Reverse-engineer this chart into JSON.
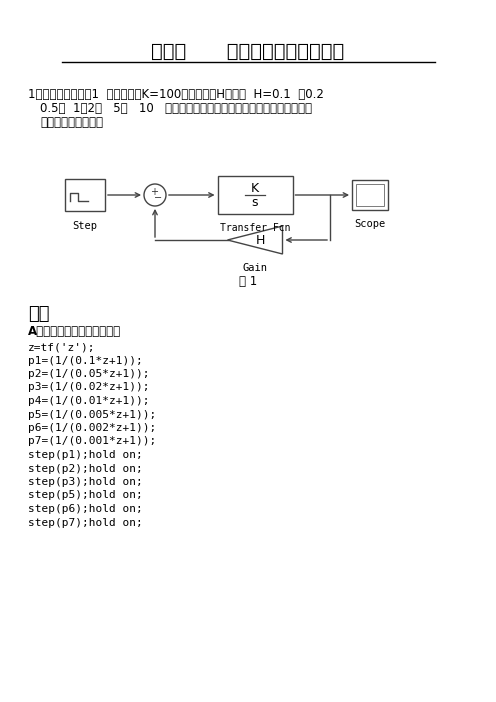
{
  "title_part1": "实验一",
  "title_part2": "线性控制系统时域分析",
  "q_line1": "1、设控制系统如图1  所示，已知K=100，试绘制当H分别取  H=0.1  ，0.2",
  "q_line2": "0.5、  1、2、   5、   10   时，系统的阶跃响应曲线。讨论反馈强度对一阶",
  "q_line3": "系统性能有何影响？",
  "fig_label": "图 1",
  "answer_header": "答：",
  "section_a": "A、绘制系统曲线程序如下：",
  "code_lines": [
    "z=tf('z');",
    "p1=(1/(0.1*z+1));",
    "p2=(1/(0.05*z+1));",
    "p3=(1/(0.02*z+1));",
    "p4=(1/(0.01*z+1));",
    "p5=(1/(0.005*z+1));",
    "p6=(1/(0.002*z+1));",
    "p7=(1/(0.001*z+1));",
    "step(p1);hold on;",
    "step(p2);hold on;",
    "step(p3);hold on;",
    "step(p5);hold on;",
    "step(p6);hold on;",
    "step(p7);hold on;"
  ],
  "step_label": "Step",
  "tf_label": "Transfer Fcn",
  "scope_label": "Scope",
  "gain_label": "Gain",
  "bg_color": "#ffffff",
  "text_color": "#000000"
}
